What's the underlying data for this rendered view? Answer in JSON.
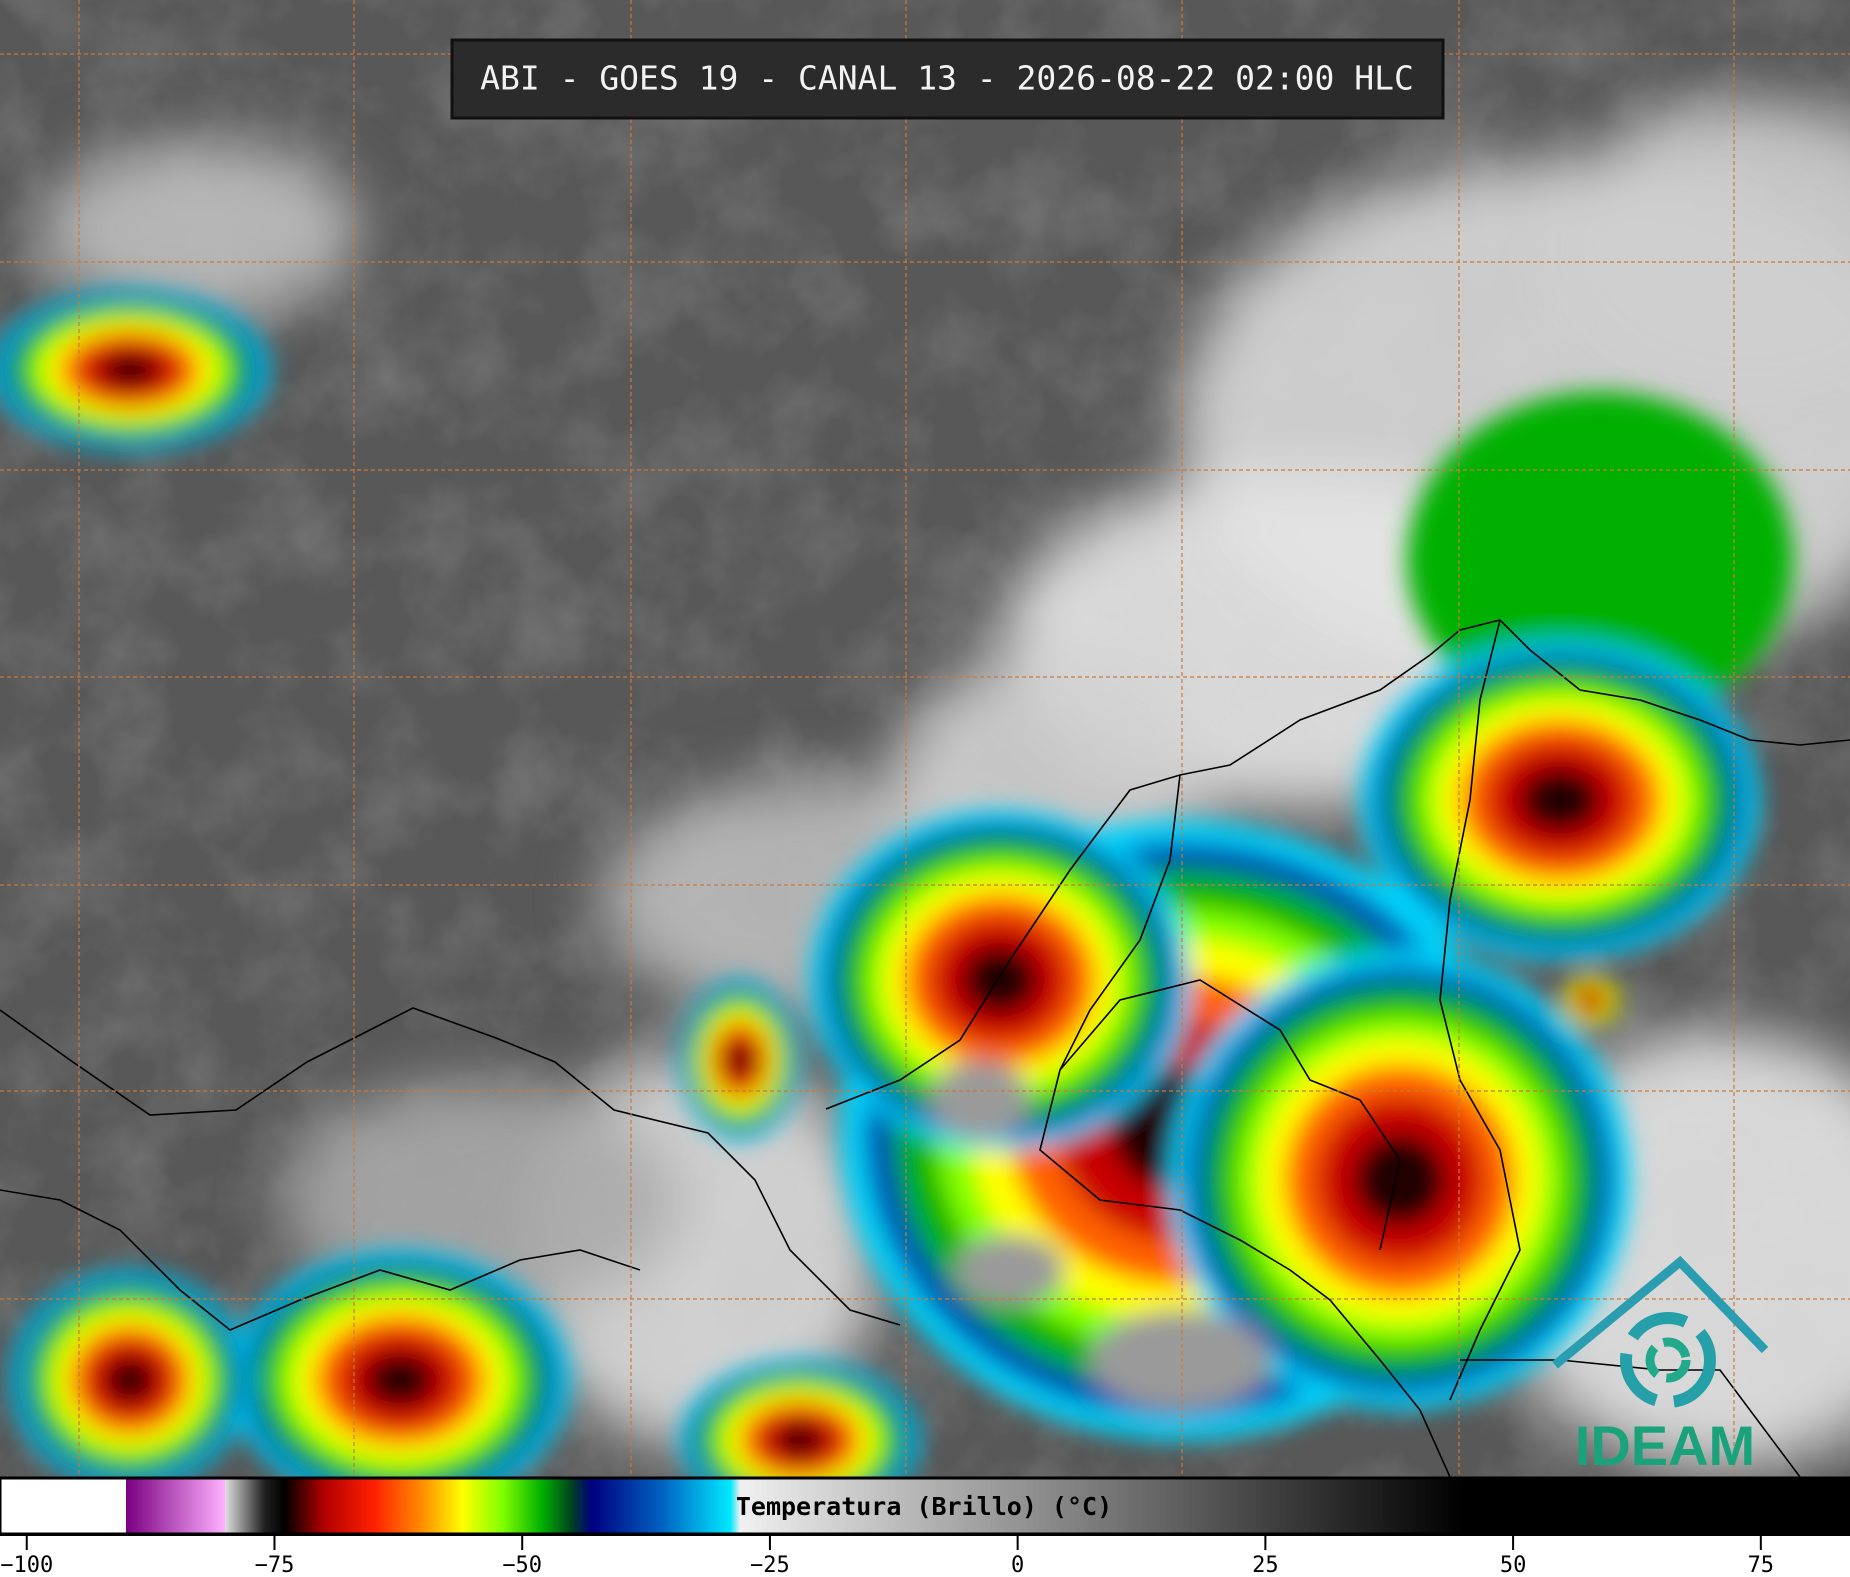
{
  "header": {
    "title": "ABI - GOES 19 - CANAL 13 - 2026-08-22 02:00 HLC"
  },
  "colorbar": {
    "label": "Temperatura (Brillo) (°C)",
    "lim": [
      -102.7,
      84
    ],
    "ticks": [
      {
        "value": -100,
        "label": "−100"
      },
      {
        "value": -75,
        "label": "−75"
      },
      {
        "value": -50,
        "label": "−50"
      },
      {
        "value": -25,
        "label": "−25"
      },
      0,
      25,
      50,
      75
    ],
    "stops": [
      {
        "value": -102.7,
        "color": "#ffffff"
      },
      {
        "value": -90,
        "color": "#ffffff"
      },
      {
        "value": -90,
        "color": "#7a0080"
      },
      {
        "value": -80,
        "color": "#ffb0ff"
      },
      {
        "value": -80,
        "color": "#e0e0e0"
      },
      {
        "value": -76,
        "color": "#202020"
      },
      {
        "value": -74,
        "color": "#000000"
      },
      {
        "value": -70,
        "color": "#b00000"
      },
      {
        "value": -65,
        "color": "#ff2000"
      },
      {
        "value": -60,
        "color": "#ff9000"
      },
      {
        "value": -56,
        "color": "#ffff00"
      },
      {
        "value": -52,
        "color": "#80ff00"
      },
      {
        "value": -48,
        "color": "#00b000"
      },
      {
        "value": -45,
        "color": "#004020"
      },
      {
        "value": -43,
        "color": "#000080"
      },
      {
        "value": -36,
        "color": "#0060c0"
      },
      {
        "value": -29,
        "color": "#00e8ff"
      },
      {
        "value": -28,
        "color": "#f0f0f0"
      },
      {
        "value": 45,
        "color": "#000000"
      },
      {
        "value": 84,
        "color": "#000000"
      }
    ]
  },
  "logo": {
    "text": "IDEAM"
  }
}
